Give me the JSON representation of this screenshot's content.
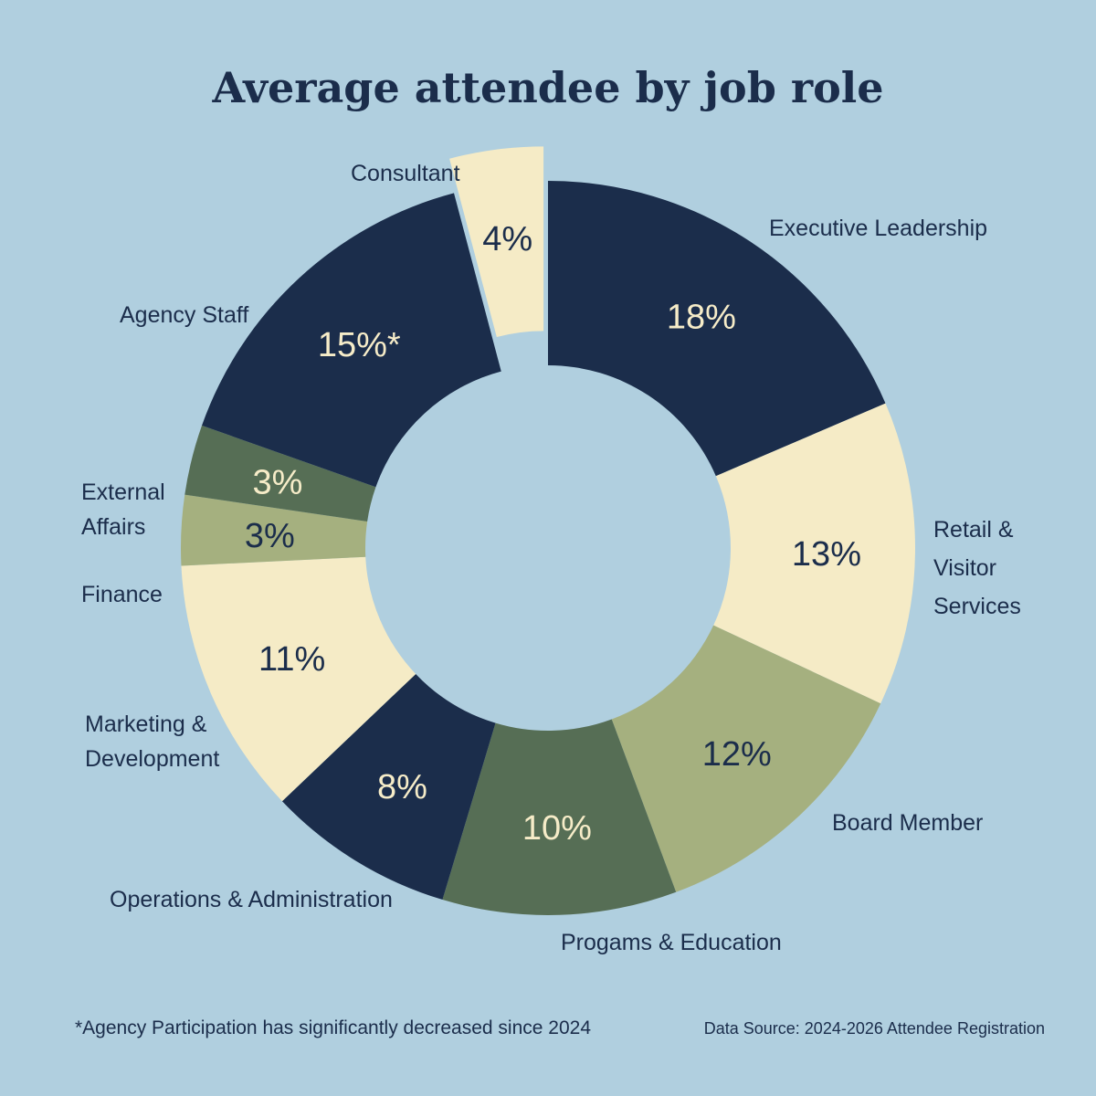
{
  "chart_data": {
    "type": "pie",
    "title": "Average attendee by job role",
    "slices": [
      {
        "label": "Executive Leadership",
        "value": 18,
        "display": "18%",
        "color": "#1b2d4b",
        "text_color": "#f6ecc8"
      },
      {
        "label": "Retail & Visitor Services",
        "value": 13,
        "display": "13%",
        "color": "#f5ebc6",
        "text_color": "#1b2d4b"
      },
      {
        "label": "Board Member",
        "value": 12,
        "display": "12%",
        "color": "#a5b07f",
        "text_color": "#1b2d4b"
      },
      {
        "label": "Progams & Education",
        "value": 10,
        "display": "10%",
        "color": "#566e55",
        "text_color": "#f6ecc8"
      },
      {
        "label": "Operations & Administration",
        "value": 8,
        "display": "8%",
        "color": "#1b2d4b",
        "text_color": "#f6ecc8"
      },
      {
        "label": "Marketing & Development",
        "value": 11,
        "display": "11%",
        "color": "#f5ebc6",
        "text_color": "#1b2d4b"
      },
      {
        "label": "Finance",
        "value": 3,
        "display": "3%",
        "color": "#a5b07f",
        "text_color": "#1b2d4b"
      },
      {
        "label": "External Affairs",
        "value": 3,
        "display": "3%",
        "color": "#566e55",
        "text_color": "#f6ecc8"
      },
      {
        "label": "Agency Staff",
        "value": 15,
        "display": "15%*",
        "color": "#1b2d4b",
        "text_color": "#f6ecc8"
      },
      {
        "label": "Consultant",
        "value": 4,
        "display": "4%",
        "color": "#f5ebc6",
        "text_color": "#1b2d4b"
      }
    ],
    "footnote": "*Agency Participation has significantly decreased since 2024",
    "source": "Data Source: 2024-2026 Attendee Registration"
  },
  "colors": {
    "background": "#b0cfdf",
    "title": "#1b2d4b",
    "label": "#1b2d4b"
  }
}
